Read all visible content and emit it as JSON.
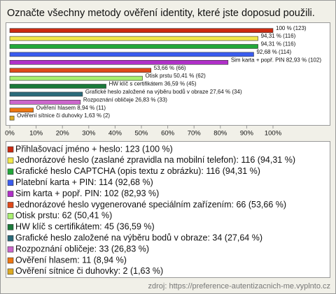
{
  "chart_data": {
    "type": "bar",
    "orientation": "horizontal",
    "title": "Označte všechny metody ověření identity, které jste doposud použili.",
    "values": [
      100,
      94.31,
      94.31,
      92.68,
      82.93,
      53.66,
      50.41,
      36.59,
      27.64,
      26.83,
      8.94,
      1.63
    ],
    "value_labels": [
      "100 % (123)",
      "94,31 % (116)",
      "94,31 % (116)",
      "92,68 % (114)",
      "Sim karta + popř. PIN 82,93 % (102)",
      "53,66 % (66)",
      "Otisk prstu 50,41 % (62)",
      "HW klíč s certifikátem 36,59 % (45)",
      "Grafické heslo založené na výběru bodů v obraze 27,64 % (34)",
      "Rozpoznání obličeje 26,83 % (33)",
      "Ověření hlasem 8,94 % (11)",
      "Ověření sítnice či duhovky 1,63 % (2)"
    ],
    "colors": [
      "#cc2a10",
      "#f2e84a",
      "#22a83a",
      "#3a5cf0",
      "#b030c8",
      "#e04a1a",
      "#a8f070",
      "#1a7a3a",
      "#2a6a7a",
      "#cc66cc",
      "#ee7711",
      "#ddaa22"
    ],
    "legend_labels": [
      "Přihlašovací jméno + heslo: 123 (100 %)",
      "Jednorázové heslo (zaslané zpravidla na mobilní telefon): 116 (94,31 %)",
      "Grafické heslo CAPTCHA (opis textu z obrázku): 116 (94,31 %)",
      "Platební karta + PIN: 114 (92,68 %)",
      "Sim karta + popř. PIN: 102 (82,93 %)",
      "Jednorázové heslo vygenerované speciálním zařízením: 66 (53,66 %)",
      "Otisk prstu: 62 (50,41 %)",
      "HW klíč s certifikátem: 45 (36,59 %)",
      "Grafické heslo založené na výběru bodů v obraze: 34 (27,64 %)",
      "Rozpoznání obličeje: 33 (26,83 %)",
      "Ověření hlasem: 11 (8,94 %)",
      "Ověření sítnice či duhovky: 2 (1,63 %)"
    ],
    "xlim": [
      0,
      100
    ],
    "xticks": [
      {
        "value": 0,
        "label": "0%"
      },
      {
        "value": 10,
        "label": "10%"
      },
      {
        "value": 20,
        "label": "20%"
      },
      {
        "value": 30,
        "label": "30%"
      },
      {
        "value": 40,
        "label": "40%"
      },
      {
        "value": 50,
        "label": "50%"
      },
      {
        "value": 60,
        "label": "60%"
      },
      {
        "value": 70,
        "label": "70%"
      },
      {
        "value": 80,
        "label": "80%"
      },
      {
        "value": 90,
        "label": "90%"
      },
      {
        "value": 100,
        "label": "100%"
      }
    ],
    "source": "zdroj: https://preference-autentizacnich-me.vyplnto.cz"
  }
}
